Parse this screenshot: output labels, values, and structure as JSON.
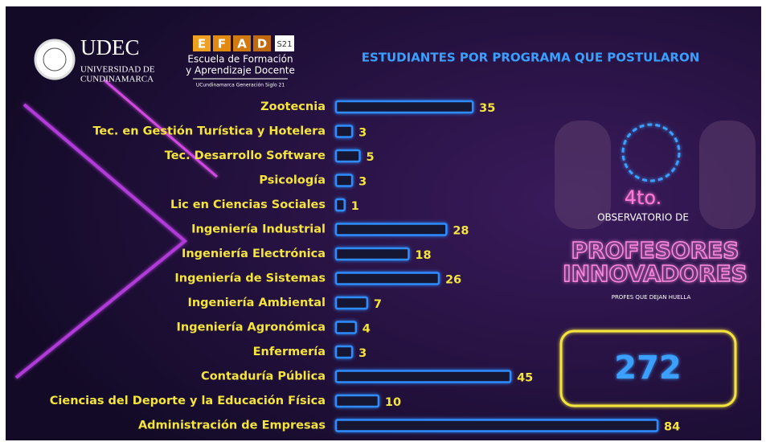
{
  "header": {
    "university_short": "UDEC",
    "university_name_1": "UNIVERSIDAD DE",
    "university_name_2": "CUNDINAMARCA",
    "efad_letters": [
      "E",
      "F",
      "A",
      "D"
    ],
    "efad_badge": "S21",
    "efad_name_1": "Escuela de Formación",
    "efad_name_2": "y Aprendizaje Docente",
    "efad_tagline": "UCundinamarca Generación Siglo 21"
  },
  "event": {
    "edition": "4to.",
    "line_1": "OBSERVATORIO DE",
    "line_2": "PROFESORES",
    "line_3": "INNOVADORES",
    "slogan": "PROFES QUE DEJAN HUELLA"
  },
  "total": 272,
  "chart_data": {
    "type": "hbar",
    "title": "ESTUDIANTES POR PROGRAMA QUE POSTULARON",
    "color": "#2f8cff",
    "label_color": "#f4e43c",
    "categories": [
      "Zootecnia",
      "Tec. en Gestión Turística y Hotelera",
      "Tec. Desarrollo Software",
      "Psicología",
      "Lic en Ciencias Sociales",
      "Ingeniería Industrial",
      "Ingeniería Electrónica",
      "Ingeniería de Sistemas",
      "Ingeniería Ambiental",
      "Ingeniería Agronómica",
      "Enfermería",
      "Contaduría Pública",
      "Ciencias del Deporte y la Educación Física",
      "Administración de Empresas"
    ],
    "values": [
      35,
      3,
      5,
      3,
      1,
      28,
      18,
      26,
      7,
      4,
      3,
      45,
      10,
      84
    ]
  }
}
